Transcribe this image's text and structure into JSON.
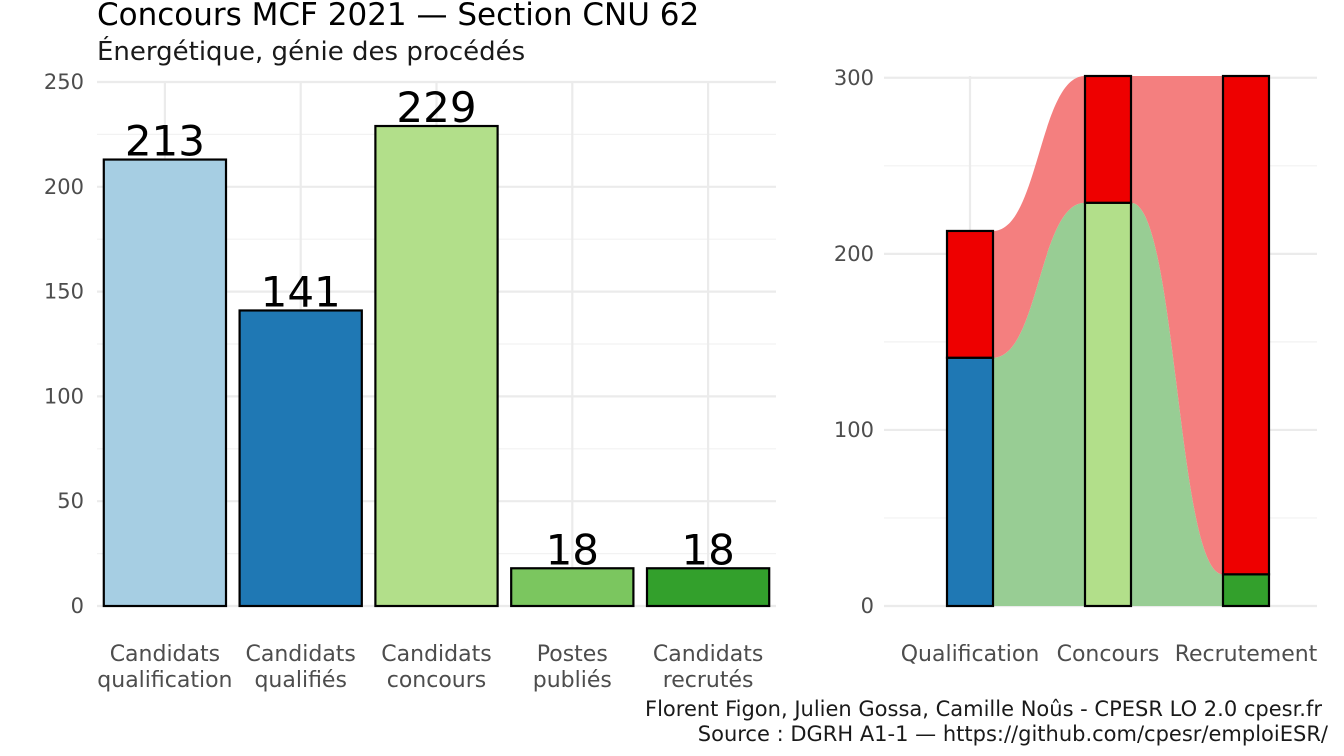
{
  "header": {
    "title": "Concours MCF  2021  —  Section CNU 62",
    "subtitle": "Énergétique, génie des procédés"
  },
  "caption": {
    "line1": "Florent Figon, Julien Gossa, Camille Noûs - CPESR LO 2.0 cpesr.fr",
    "line2": "Source : DGRH A1-1 — https://github.com/cpesr/emploiESR/"
  },
  "chart_data": [
    {
      "type": "bar",
      "categories": [
        [
          "Candidats",
          "qualification"
        ],
        [
          "Candidats",
          "qualifiés"
        ],
        [
          "Candidats",
          "concours"
        ],
        [
          "Postes",
          "publiés"
        ],
        [
          "Candidats",
          "recrutés"
        ]
      ],
      "values": [
        213,
        141,
        229,
        18,
        18
      ],
      "colors": [
        "#a6cee3",
        "#1f78b4",
        "#b2df8a",
        "#7bc65f",
        "#33a02c"
      ],
      "ylim": [
        0,
        250
      ],
      "yticks": [
        0,
        50,
        100,
        150,
        200,
        250
      ],
      "data_labels": true,
      "grid": true
    },
    {
      "type": "stacked-bar-alluvial",
      "categories": [
        "Qualification",
        "Concours",
        "Recrutement"
      ],
      "stacks": [
        {
          "bottom": 141,
          "top": 72,
          "bottom_color": "#1f78b4",
          "top_color": "#ee0000"
        },
        {
          "bottom": 229,
          "top": 72,
          "bottom_color": "#b2df8a",
          "top_color": "#ee0000"
        },
        {
          "bottom": 18,
          "top": 283,
          "bottom_color": "#33a02c",
          "top_color": "#ee0000"
        }
      ],
      "flow_colors": {
        "bottom": "#98cd94",
        "top": "#f47f7f"
      },
      "ylim": [
        0,
        301
      ],
      "yticks": [
        0,
        100,
        200,
        300
      ],
      "grid": true
    }
  ]
}
